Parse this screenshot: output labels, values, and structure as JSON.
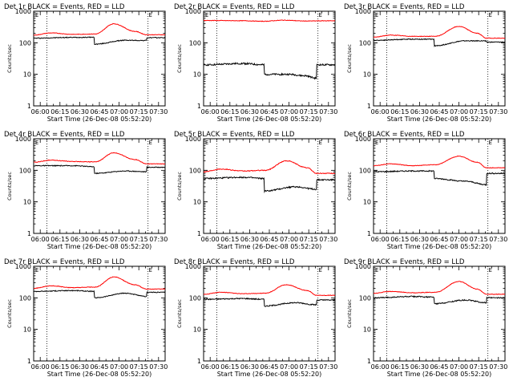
{
  "colors": {
    "events": "#000000",
    "lld": "#ff0000",
    "axes": "#000000",
    "background": "#ffffff"
  },
  "chart_data": [
    {
      "type": "line",
      "title": "Det 1r BLACK = Events, RED = LLD",
      "xlabel": "Start Time (26-Dec-08 05:52:20)",
      "ylabel": "Counts/sec",
      "x_ticks": [
        "06:00",
        "06:15",
        "06:30",
        "06:45",
        "07:00",
        "07:15",
        "07:30"
      ],
      "y_scale": "log",
      "ylim": [
        1,
        1000
      ],
      "y_ticks": [
        "1",
        "10",
        "100",
        "1000"
      ],
      "xlim_minutes": [
        355,
        455
      ],
      "dotted_lines_minutes": [
        365,
        442
      ],
      "corner_markers": [
        "E",
        "E"
      ],
      "series": [
        {
          "color": "events",
          "knots": [
            [
              355,
              140
            ],
            [
              385,
              148
            ],
            [
              401,
              150
            ],
            [
              401,
              90
            ],
            [
              425,
              120
            ],
            [
              441,
              118
            ],
            [
              441,
              145
            ],
            [
              455,
              145
            ]
          ],
          "noise": 0.03
        },
        {
          "color": "lld",
          "knots": [
            [
              355,
              175
            ],
            [
              368,
              205
            ],
            [
              385,
              185
            ],
            [
              402,
              190
            ],
            [
              416,
              400
            ],
            [
              432,
              230
            ],
            [
              441,
              180
            ],
            [
              455,
              180
            ]
          ],
          "noise": 0.02
        }
      ]
    },
    {
      "type": "line",
      "title": "Det 2r BLACK = Events, RED = LLD",
      "xlabel": "Start Time (26-Dec-08 05:52:20)",
      "ylabel": "Counts/sec",
      "x_ticks": [
        "06:00",
        "06:15",
        "06:30",
        "06:45",
        "07:00",
        "07:15",
        "07:30"
      ],
      "y_scale": "log",
      "ylim": [
        1,
        1000
      ],
      "y_ticks": [
        "1",
        "10",
        "100",
        "1000"
      ],
      "xlim_minutes": [
        355,
        455
      ],
      "dotted_lines_minutes": [
        365,
        442
      ],
      "corner_markers": [
        "E",
        "E"
      ],
      "series": [
        {
          "color": "events",
          "knots": [
            [
              355,
              20
            ],
            [
              385,
              22
            ],
            [
              401,
              20
            ],
            [
              401,
              10
            ],
            [
              420,
              10
            ],
            [
              432,
              9
            ],
            [
              441,
              7.5
            ],
            [
              441,
              20
            ],
            [
              455,
              20
            ]
          ],
          "noise": 0.06
        },
        {
          "color": "lld",
          "knots": [
            [
              355,
              510
            ],
            [
              385,
              500
            ],
            [
              400,
              480
            ],
            [
              416,
              520
            ],
            [
              432,
              490
            ],
            [
              455,
              500
            ]
          ],
          "noise": 0.02
        }
      ]
    },
    {
      "type": "line",
      "title": "Det 3r BLACK = Events, RED = LLD",
      "xlabel": "Start Time (26-Dec-08 05:52:20)",
      "ylabel": "Counts/sec",
      "x_ticks": [
        "06:00",
        "06:15",
        "06:30",
        "06:45",
        "07:00",
        "07:15",
        "07:30"
      ],
      "y_scale": "log",
      "ylim": [
        1,
        1000
      ],
      "y_ticks": [
        "1",
        "10",
        "100",
        "1000"
      ],
      "xlim_minutes": [
        355,
        455
      ],
      "dotted_lines_minutes": [
        365,
        442
      ],
      "corner_markers": [
        "E",
        "E"
      ],
      "series": [
        {
          "color": "events",
          "knots": [
            [
              355,
              120
            ],
            [
              385,
              130
            ],
            [
              401,
              130
            ],
            [
              401,
              80
            ],
            [
              425,
              115
            ],
            [
              441,
              115
            ],
            [
              441,
              105
            ],
            [
              455,
              105
            ]
          ],
          "noise": 0.03
        },
        {
          "color": "lld",
          "knots": [
            [
              355,
              150
            ],
            [
              368,
              175
            ],
            [
              385,
              160
            ],
            [
              402,
              160
            ],
            [
              420,
              330
            ],
            [
              434,
              200
            ],
            [
              441,
              140
            ],
            [
              455,
              140
            ]
          ],
          "noise": 0.02
        }
      ]
    },
    {
      "type": "line",
      "title": "Det 4r BLACK = Events, RED = LLD",
      "xlabel": "Start Time (26-Dec-08 05:52:20)",
      "ylabel": "Counts/sec",
      "x_ticks": [
        "06:00",
        "06:15",
        "06:30",
        "06:45",
        "07:00",
        "07:15",
        "07:30"
      ],
      "y_scale": "log",
      "ylim": [
        1,
        1000
      ],
      "y_ticks": [
        "1",
        "10",
        "100",
        "1000"
      ],
      "xlim_minutes": [
        355,
        455
      ],
      "dotted_lines_minutes": [
        365,
        442
      ],
      "corner_markers": [
        "E",
        "E"
      ],
      "series": [
        {
          "color": "events",
          "knots": [
            [
              355,
              140
            ],
            [
              385,
              140
            ],
            [
              401,
              130
            ],
            [
              401,
              80
            ],
            [
              425,
              95
            ],
            [
              441,
              90
            ],
            [
              441,
              125
            ],
            [
              455,
              125
            ]
          ],
          "noise": 0.03
        },
        {
          "color": "lld",
          "knots": [
            [
              355,
              180
            ],
            [
              368,
              210
            ],
            [
              385,
              190
            ],
            [
              402,
              185
            ],
            [
              416,
              360
            ],
            [
              432,
              220
            ],
            [
              441,
              160
            ],
            [
              455,
              160
            ]
          ],
          "noise": 0.02
        }
      ]
    },
    {
      "type": "line",
      "title": "Det 5r BLACK = Events, RED = LLD",
      "xlabel": "Start Time (26-Dec-08 05:52:20)",
      "ylabel": "Counts/sec",
      "x_ticks": [
        "06:00",
        "06:15",
        "06:30",
        "06:45",
        "07:00",
        "07:15",
        "07:30"
      ],
      "y_scale": "log",
      "ylim": [
        1,
        1000
      ],
      "y_ticks": [
        "1",
        "10",
        "100",
        "1000"
      ],
      "xlim_minutes": [
        355,
        455
      ],
      "dotted_lines_minutes": [
        365,
        442
      ],
      "corner_markers": [
        "E",
        "E"
      ],
      "series": [
        {
          "color": "events",
          "knots": [
            [
              355,
              55
            ],
            [
              385,
              60
            ],
            [
              401,
              55
            ],
            [
              401,
              22
            ],
            [
              425,
              30
            ],
            [
              441,
              25
            ],
            [
              441,
              50
            ],
            [
              455,
              50
            ]
          ],
          "noise": 0.05
        },
        {
          "color": "lld",
          "knots": [
            [
              355,
              90
            ],
            [
              368,
              110
            ],
            [
              385,
              95
            ],
            [
              402,
              100
            ],
            [
              418,
              200
            ],
            [
              434,
              120
            ],
            [
              441,
              80
            ],
            [
              455,
              80
            ]
          ],
          "noise": 0.03
        }
      ]
    },
    {
      "type": "line",
      "title": "Det 6r BLACK = Events, RED = LLD",
      "xlabel": "Start Time (26-Dec-08 05:52:20)",
      "ylabel": "Counts/sec",
      "x_ticks": [
        "06:00",
        "06:15",
        "06:30",
        "06:45",
        "07:00",
        "07:15",
        "07:30"
      ],
      "y_scale": "log",
      "ylim": [
        1,
        1000
      ],
      "y_ticks": [
        "1",
        "10",
        "100",
        "1000"
      ],
      "xlim_minutes": [
        355,
        455
      ],
      "dotted_lines_minutes": [
        365,
        442
      ],
      "corner_markers": [
        "E",
        "E"
      ],
      "series": [
        {
          "color": "events",
          "knots": [
            [
              355,
              90
            ],
            [
              385,
              95
            ],
            [
              401,
              95
            ],
            [
              401,
              55
            ],
            [
              425,
              45
            ],
            [
              441,
              35
            ],
            [
              441,
              80
            ],
            [
              455,
              80
            ]
          ],
          "noise": 0.04
        },
        {
          "color": "lld",
          "knots": [
            [
              355,
              140
            ],
            [
              368,
              160
            ],
            [
              385,
              140
            ],
            [
              402,
              150
            ],
            [
              420,
              280
            ],
            [
              434,
              180
            ],
            [
              441,
              120
            ],
            [
              455,
              120
            ]
          ],
          "noise": 0.02
        }
      ]
    },
    {
      "type": "line",
      "title": "Det 7r BLACK = Events, RED = LLD",
      "xlabel": "Start Time (26-Dec-08 05:52:20)",
      "ylabel": "Counts/sec",
      "x_ticks": [
        "06:00",
        "06:15",
        "06:30",
        "06:45",
        "07:00",
        "07:15",
        "07:30"
      ],
      "y_scale": "log",
      "ylim": [
        1,
        1000
      ],
      "y_ticks": [
        "1",
        "10",
        "100",
        "1000"
      ],
      "xlim_minutes": [
        355,
        455
      ],
      "dotted_lines_minutes": [
        365,
        442
      ],
      "corner_markers": [
        "E",
        "E"
      ],
      "series": [
        {
          "color": "events",
          "knots": [
            [
              355,
              160
            ],
            [
              385,
              170
            ],
            [
              401,
              160
            ],
            [
              401,
              100
            ],
            [
              425,
              140
            ],
            [
              441,
              110
            ],
            [
              441,
              150
            ],
            [
              455,
              150
            ]
          ],
          "noise": 0.03
        },
        {
          "color": "lld",
          "knots": [
            [
              355,
              200
            ],
            [
              368,
              240
            ],
            [
              385,
              210
            ],
            [
              402,
              220
            ],
            [
              416,
              460
            ],
            [
              432,
              260
            ],
            [
              441,
              190
            ],
            [
              455,
              190
            ]
          ],
          "noise": 0.02
        }
      ]
    },
    {
      "type": "line",
      "title": "Det 8r BLACK = Events, RED = LLD",
      "xlabel": "Start Time (26-Dec-08 05:52:20)",
      "ylabel": "Counts/sec",
      "x_ticks": [
        "06:00",
        "06:15",
        "06:30",
        "06:45",
        "07:00",
        "07:15",
        "07:30"
      ],
      "y_scale": "log",
      "ylim": [
        1,
        1000
      ],
      "y_ticks": [
        "1",
        "10",
        "100",
        "1000"
      ],
      "xlim_minutes": [
        355,
        455
      ],
      "dotted_lines_minutes": [
        365,
        442
      ],
      "corner_markers": [
        "E",
        "E"
      ],
      "series": [
        {
          "color": "events",
          "knots": [
            [
              355,
              90
            ],
            [
              385,
              95
            ],
            [
              401,
              90
            ],
            [
              401,
              55
            ],
            [
              425,
              70
            ],
            [
              441,
              60
            ],
            [
              441,
              85
            ],
            [
              455,
              85
            ]
          ],
          "noise": 0.04
        },
        {
          "color": "lld",
          "knots": [
            [
              355,
              130
            ],
            [
              368,
              150
            ],
            [
              385,
              135
            ],
            [
              402,
              140
            ],
            [
              418,
              260
            ],
            [
              434,
              170
            ],
            [
              441,
              120
            ],
            [
              455,
              120
            ]
          ],
          "noise": 0.02
        }
      ]
    },
    {
      "type": "line",
      "title": "Det 9r BLACK = Events, RED = LLD",
      "xlabel": "Start Time (26-Dec-08 05:52:20)",
      "ylabel": "Counts/sec",
      "x_ticks": [
        "06:00",
        "06:15",
        "06:30",
        "06:45",
        "07:00",
        "07:15",
        "07:30"
      ],
      "y_scale": "log",
      "ylim": [
        1,
        1000
      ],
      "y_ticks": [
        "1",
        "10",
        "100",
        "1000"
      ],
      "xlim_minutes": [
        355,
        455
      ],
      "dotted_lines_minutes": [
        365,
        442
      ],
      "corner_markers": [
        "E",
        "E"
      ],
      "series": [
        {
          "color": "events",
          "knots": [
            [
              355,
              100
            ],
            [
              385,
              110
            ],
            [
              401,
              105
            ],
            [
              401,
              65
            ],
            [
              425,
              85
            ],
            [
              441,
              70
            ],
            [
              441,
              100
            ],
            [
              455,
              100
            ]
          ],
          "noise": 0.04
        },
        {
          "color": "lld",
          "knots": [
            [
              355,
              140
            ],
            [
              368,
              160
            ],
            [
              385,
              145
            ],
            [
              402,
              150
            ],
            [
              420,
              330
            ],
            [
              434,
              190
            ],
            [
              441,
              130
            ],
            [
              455,
              130
            ]
          ],
          "noise": 0.02
        }
      ]
    }
  ]
}
